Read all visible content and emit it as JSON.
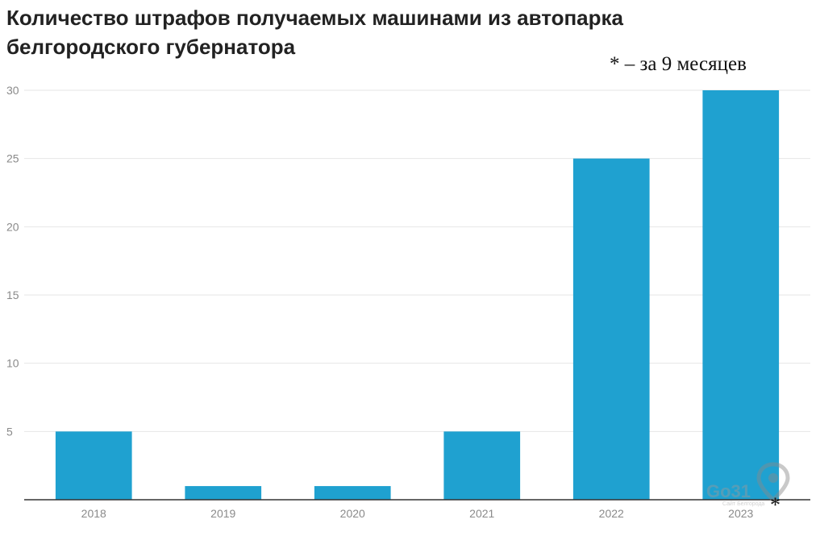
{
  "chart_data": {
    "type": "bar",
    "title": "Количество штрафов получаемых машинами из автопарка белгородского губернатора",
    "note": "* – за 9 месяцев",
    "categories": [
      "2018",
      "2019",
      "2020",
      "2021",
      "2022",
      "2023"
    ],
    "values": [
      5,
      1,
      1,
      5,
      25,
      30
    ],
    "yticks": [
      "5",
      "10",
      "15",
      "20",
      "25",
      "30"
    ],
    "ylim": [
      0,
      30
    ],
    "xlabel": "",
    "ylabel": "",
    "grid": true,
    "bar_color": "#1fa1d0",
    "footnote_marker": "*"
  },
  "watermark": {
    "text": "Go31",
    "subtext": "Сайт Белгорода"
  },
  "colors": {
    "grid": "#e6e6e6",
    "axis": "#333333",
    "tick_text": "#8a8a8a"
  }
}
